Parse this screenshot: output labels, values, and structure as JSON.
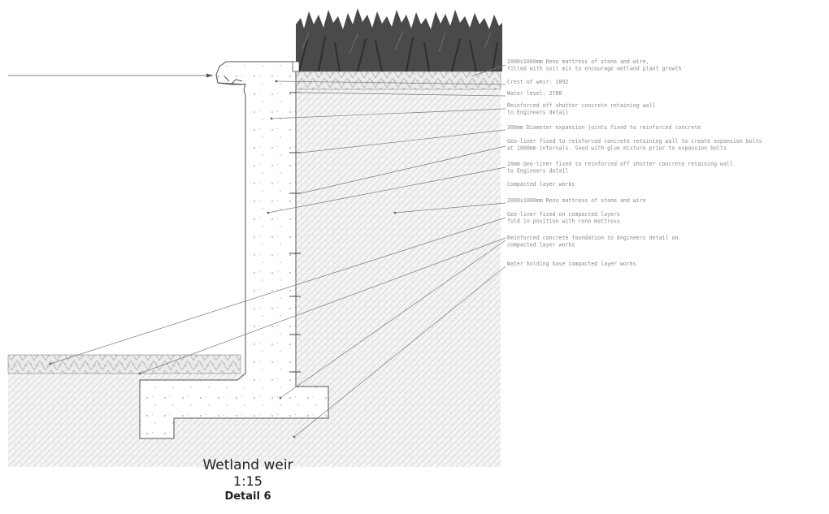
{
  "title": {
    "name": "Wetland weir",
    "scale": "1:15",
    "detail": "Detail 6"
  },
  "annotations": [
    [
      "2000x1000mm Reno mattress of stone and wire,",
      "filled with soil mix to encourage wetland plant growth"
    ],
    [
      "Crest of weir: 2892"
    ],
    [
      "Water level: 2700"
    ],
    [
      "Reinforced off shutter concrete retaining wall",
      "to Engineers detail"
    ],
    [
      "300mm Diameter expansion joints fixed to reinforced concrete"
    ],
    [
      "Geo-liner fixed to reinforced concrete retaining wall to create expansion bolts",
      "at 1000mm intervals. Seed with glue mixture prior to expansion bolts"
    ],
    [
      "20mm Geo-liner fixed to reinforced off shutter concrete retaining wall",
      "to Engineers detail"
    ],
    [
      "Compacted layer works"
    ],
    [
      "2000x1000mm Reno mattress of stone and wire"
    ],
    [
      "Geo-liner fixed on compacted layers",
      "fold in position with reno mattress"
    ],
    [
      "Reinforced concrete foundation to Engineers detail on",
      "compacted layer works"
    ],
    [
      "Water holding base compacted layer works"
    ]
  ],
  "colors": {
    "line": "#555555",
    "hatch": "#c8c8c8",
    "vegetation": "#4a4a4a",
    "text": "#8a8a8a"
  }
}
